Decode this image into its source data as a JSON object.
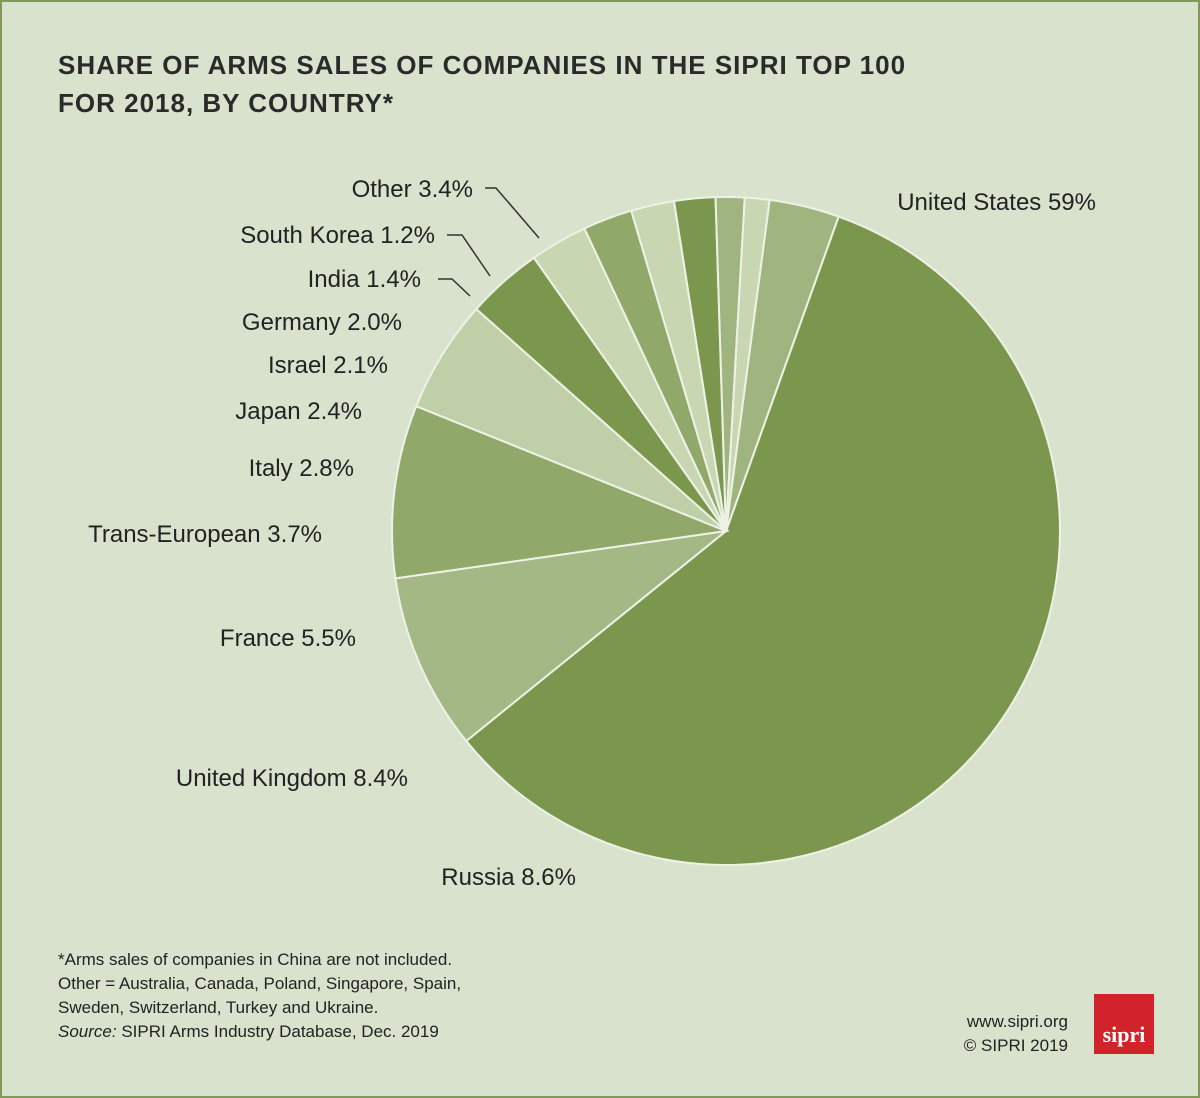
{
  "title_line1": "SHARE OF ARMS SALES OF COMPANIES IN THE SIPRI TOP 100",
  "title_line2": "FOR 2018, BY COUNTRY*",
  "chart_data": {
    "type": "pie",
    "title": "SHARE OF ARMS SALES OF COMPANIES IN THE SIPRI TOP 100 FOR 2018, BY COUNTRY*",
    "unit": "%",
    "slices": [
      {
        "label": "United States",
        "value": 59,
        "display": "United States 59%",
        "color": "#7a974d"
      },
      {
        "label": "Russia",
        "value": 8.6,
        "display": "Russia 8.6%",
        "color": "#a4b886"
      },
      {
        "label": "United Kingdom",
        "value": 8.4,
        "display": "United Kingdom 8.4%",
        "color": "#90a86a"
      },
      {
        "label": "France",
        "value": 5.5,
        "display": "France 5.5%",
        "color": "#bfcfa8"
      },
      {
        "label": "Trans-European",
        "value": 3.7,
        "display": "Trans-European 3.7%",
        "color": "#7a974d"
      },
      {
        "label": "Italy",
        "value": 2.8,
        "display": "Italy 2.8%",
        "color": "#c8d6b2"
      },
      {
        "label": "Japan",
        "value": 2.4,
        "display": "Japan 2.4%",
        "color": "#90a86a"
      },
      {
        "label": "Israel",
        "value": 2.1,
        "display": "Israel 2.1%",
        "color": "#c8d6b2"
      },
      {
        "label": "Germany",
        "value": 2.0,
        "display": "Germany 2.0%",
        "color": "#7a974d"
      },
      {
        "label": "India",
        "value": 1.4,
        "display": "India 1.4%",
        "color": "#9fb47f"
      },
      {
        "label": "South Korea",
        "value": 1.2,
        "display": "South Korea 1.2%",
        "color": "#c8d6b2"
      },
      {
        "label": "Other",
        "value": 3.4,
        "display": "Other 3.4%",
        "color": "#9fb47f"
      }
    ]
  },
  "footnote": {
    "line1": "*Arms sales of companies in China are not included.",
    "line2": "Other = Australia, Canada, Poland, Singapore, Spain,",
    "line3": "Sweden, Switzerland, Turkey and Ukraine.",
    "source_label": "Source:",
    "source_text": " SIPRI Arms Industry Database, Dec. 2019"
  },
  "credits": {
    "website": "www.sipri.org",
    "copyright": "© SIPRI 2019"
  },
  "logo_text": "sipri",
  "colors": {
    "background": "#d8e2cc",
    "border": "#7f9a5b",
    "logo": "#d2232a"
  }
}
